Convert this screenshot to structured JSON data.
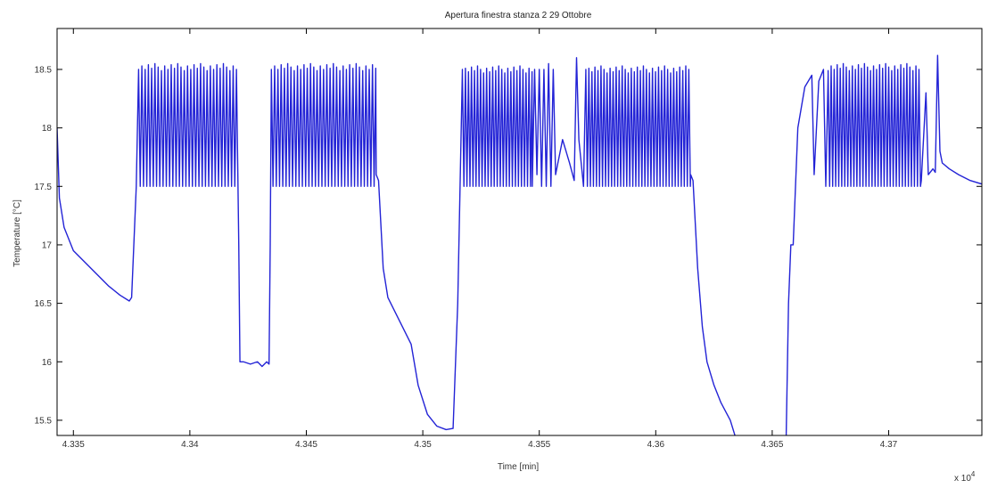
{
  "chart_data": {
    "type": "line",
    "title": "Apertura finestra stanza 2 29 Ottobre",
    "xlabel": "Time [min]",
    "ylabel": "Temperature [°C]",
    "x_multiplier_label": "x 10",
    "x_multiplier_exponent": "4",
    "xlim": [
      43343,
      43740
    ],
    "ylim": [
      15.37,
      18.85
    ],
    "x_ticks": [
      43350,
      43400,
      43450,
      43500,
      43550,
      43600,
      43650,
      43700
    ],
    "x_tick_labels": [
      "4.335",
      "4.34",
      "4.345",
      "4.35",
      "4.355",
      "4.36",
      "4.365",
      "4.37"
    ],
    "y_ticks": [
      15.5,
      16,
      16.5,
      17,
      17.5,
      18,
      18.5
    ],
    "y_tick_labels": [
      "15.5",
      "16",
      "16.5",
      "17",
      "17.5",
      "18",
      "18.5"
    ],
    "grid": false,
    "line_color": "#2323d6",
    "series": [
      {
        "segments": [
          {
            "kind": "curve",
            "points": [
              [
                43343,
                18.0
              ],
              [
                43344,
                17.4
              ],
              [
                43346,
                17.15
              ],
              [
                43350,
                16.95
              ],
              [
                43355,
                16.85
              ],
              [
                43360,
                16.75
              ],
              [
                43365,
                16.65
              ],
              [
                43370,
                16.57
              ],
              [
                43374,
                16.52
              ],
              [
                43375,
                16.55
              ],
              [
                43377,
                17.5
              ],
              [
                43378,
                18.5
              ]
            ]
          },
          {
            "kind": "osc",
            "x0": 43378,
            "x1": 43420,
            "period": 1.4,
            "lo": 17.5,
            "hi": 18.52
          },
          {
            "kind": "curve",
            "points": [
              [
                43420,
                18.5
              ],
              [
                43421,
                17.0
              ],
              [
                43421.5,
                16.0
              ],
              [
                43423,
                16.0
              ],
              [
                43426,
                15.98
              ],
              [
                43429,
                16.0
              ],
              [
                43431,
                15.96
              ],
              [
                43433,
                16.0
              ],
              [
                43434,
                15.98
              ],
              [
                43434.5,
                17.0
              ],
              [
                43435,
                18.5
              ]
            ]
          },
          {
            "kind": "osc",
            "x0": 43435,
            "x1": 43480,
            "period": 1.4,
            "lo": 17.5,
            "hi": 18.52
          },
          {
            "kind": "curve",
            "points": [
              [
                43480,
                17.6
              ],
              [
                43481,
                17.55
              ],
              [
                43483,
                16.8
              ],
              [
                43485,
                16.55
              ],
              [
                43490,
                16.35
              ],
              [
                43495,
                16.15
              ],
              [
                43498,
                15.8
              ],
              [
                43502,
                15.55
              ],
              [
                43506,
                15.45
              ],
              [
                43510,
                15.42
              ],
              [
                43513,
                15.43
              ],
              [
                43515,
                16.5
              ],
              [
                43517,
                18.5
              ]
            ]
          },
          {
            "kind": "osc",
            "x0": 43517,
            "x1": 43547,
            "period": 1.3,
            "lo": 17.5,
            "hi": 18.5
          },
          {
            "kind": "curve",
            "points": [
              [
                43547,
                17.5
              ],
              [
                43548,
                18.5
              ],
              [
                43549,
                17.6
              ],
              [
                43550,
                18.5
              ],
              [
                43551,
                17.5
              ],
              [
                43552,
                18.5
              ],
              [
                43553,
                17.5
              ],
              [
                43554,
                18.55
              ],
              [
                43555,
                17.5
              ],
              [
                43556,
                18.5
              ],
              [
                43557,
                17.6
              ],
              [
                43560,
                17.9
              ],
              [
                43563,
                17.7
              ],
              [
                43565,
                17.55
              ],
              [
                43566,
                18.6
              ],
              [
                43567,
                17.9
              ],
              [
                43569,
                17.5
              ],
              [
                43570,
                18.5
              ]
            ]
          },
          {
            "kind": "osc",
            "x0": 43570,
            "x1": 43615,
            "period": 1.3,
            "lo": 17.5,
            "hi": 18.5
          },
          {
            "kind": "curve",
            "points": [
              [
                43615,
                17.6
              ],
              [
                43616,
                17.55
              ],
              [
                43618,
                16.8
              ],
              [
                43620,
                16.3
              ],
              [
                43622,
                16.0
              ],
              [
                43625,
                15.8
              ],
              [
                43628,
                15.65
              ],
              [
                43632,
                15.5
              ],
              [
                43634,
                15.37
              ]
            ]
          },
          {
            "kind": "break"
          },
          {
            "kind": "curve",
            "points": [
              [
                43656,
                15.37
              ],
              [
                43657,
                16.5
              ],
              [
                43658,
                17.0
              ],
              [
                43659,
                17.0
              ],
              [
                43661,
                18.0
              ],
              [
                43664,
                18.35
              ],
              [
                43667,
                18.45
              ],
              [
                43668,
                17.6
              ],
              [
                43670,
                18.4
              ],
              [
                43672,
                18.5
              ],
              [
                43673,
                17.5
              ],
              [
                43674,
                18.45
              ]
            ]
          },
          {
            "kind": "osc",
            "x0": 43674,
            "x1": 43714,
            "period": 1.3,
            "lo": 17.5,
            "hi": 18.52
          },
          {
            "kind": "curve",
            "points": [
              [
                43714,
                17.55
              ],
              [
                43716,
                18.3
              ],
              [
                43717,
                17.6
              ],
              [
                43719,
                17.65
              ],
              [
                43720,
                17.62
              ],
              [
                43721,
                18.62
              ],
              [
                43722,
                17.8
              ],
              [
                43723,
                17.7
              ],
              [
                43726,
                17.65
              ],
              [
                43730,
                17.6
              ],
              [
                43735,
                17.55
              ],
              [
                43740,
                17.52
              ]
            ]
          }
        ]
      }
    ]
  }
}
